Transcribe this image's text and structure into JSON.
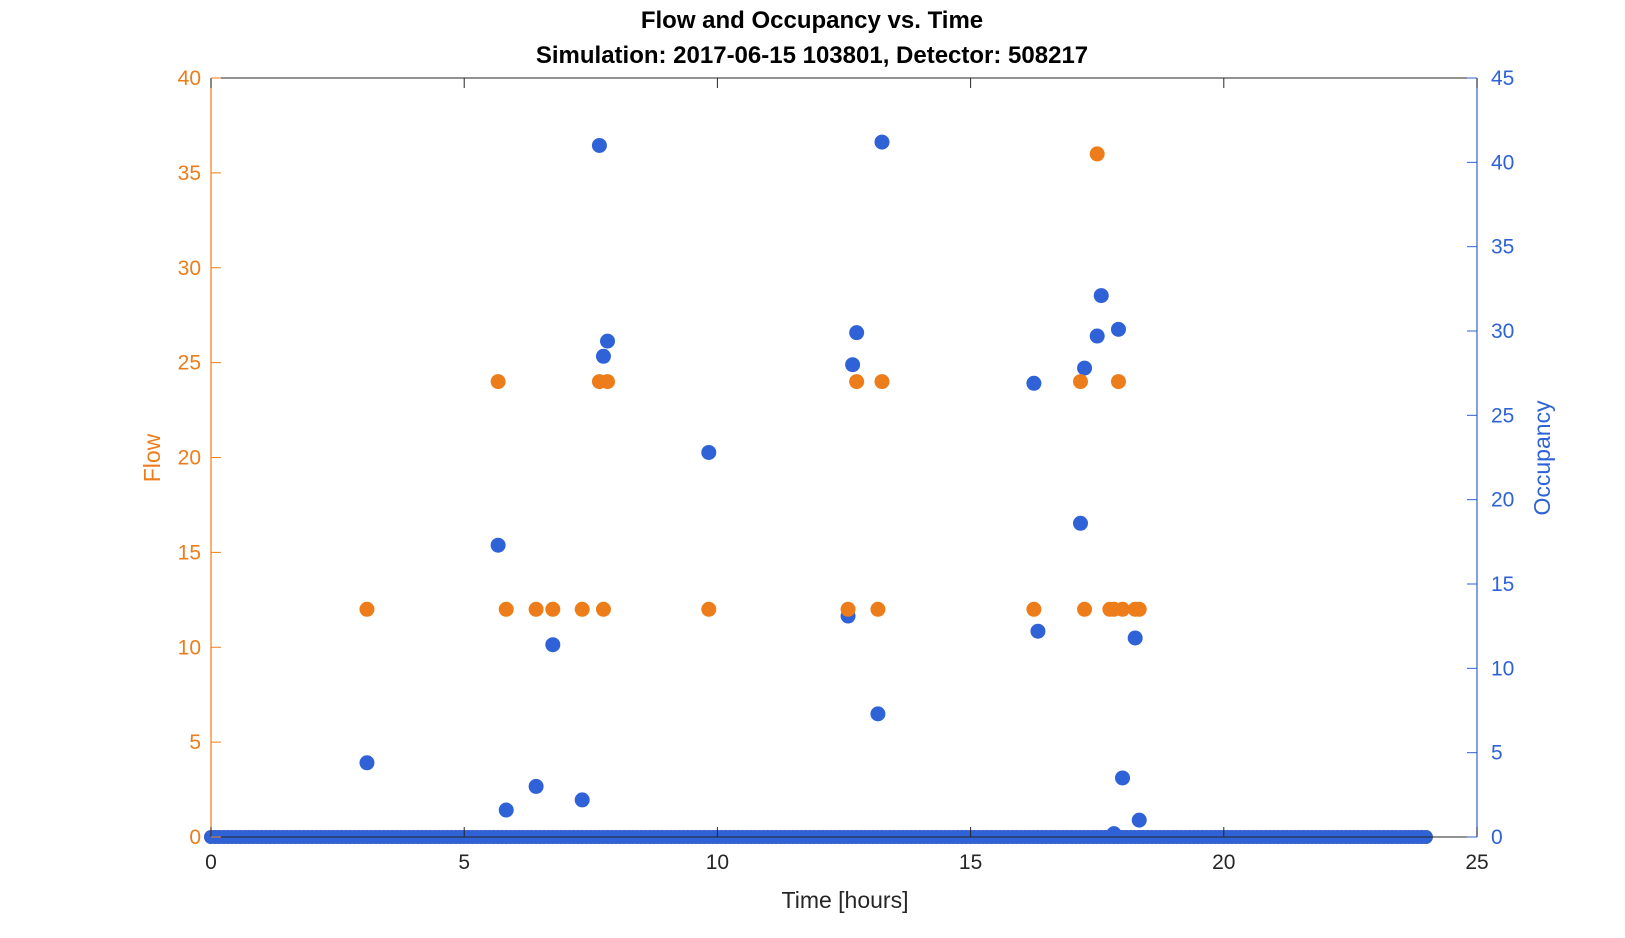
{
  "chart_data": {
    "type": "scatter",
    "title": "Flow and Occupancy vs. Time",
    "subtitle": "Simulation:  2017-06-15 103801,  Detector:  508217",
    "xlabel": "Time [hours]",
    "ylabel_left": "Flow",
    "ylabel_right": "Occupancy",
    "xlim": [
      0,
      25
    ],
    "ylim_left": [
      0,
      40
    ],
    "ylim_right": [
      0,
      45
    ],
    "x_ticks": [
      0,
      5,
      10,
      15,
      20,
      25
    ],
    "y_ticks_left": [
      0,
      5,
      10,
      15,
      20,
      25,
      30,
      35,
      40
    ],
    "y_ticks_right": [
      0,
      5,
      10,
      15,
      20,
      25,
      30,
      35,
      40,
      45
    ],
    "colors": {
      "flow": "#ED7D1A",
      "occupancy": "#2F62D6",
      "axis": "#262626"
    },
    "baseline": {
      "x_start": 0,
      "x_end": 24,
      "step_hours": 0.0833,
      "value": 0
    },
    "series": [
      {
        "name": "Flow",
        "axis": "left",
        "color": "#ED7D1A",
        "points": [
          [
            3.08,
            12
          ],
          [
            5.67,
            24
          ],
          [
            5.83,
            12
          ],
          [
            6.42,
            12
          ],
          [
            6.75,
            12
          ],
          [
            7.33,
            12
          ],
          [
            7.67,
            24
          ],
          [
            7.75,
            12
          ],
          [
            7.83,
            24
          ],
          [
            9.83,
            12
          ],
          [
            12.58,
            12
          ],
          [
            12.75,
            24
          ],
          [
            13.17,
            12
          ],
          [
            13.25,
            24
          ],
          [
            16.25,
            12
          ],
          [
            17.17,
            24
          ],
          [
            17.25,
            12
          ],
          [
            17.5,
            36
          ],
          [
            17.75,
            12
          ],
          [
            17.83,
            12
          ],
          [
            17.92,
            24
          ],
          [
            18.0,
            12
          ],
          [
            18.25,
            12
          ],
          [
            18.33,
            12
          ]
        ]
      },
      {
        "name": "Occupancy",
        "axis": "right",
        "color": "#2F62D6",
        "points": [
          [
            3.08,
            4.4
          ],
          [
            5.67,
            17.3
          ],
          [
            5.83,
            1.6
          ],
          [
            6.42,
            3.0
          ],
          [
            6.75,
            11.4
          ],
          [
            7.33,
            2.2
          ],
          [
            7.67,
            41.0
          ],
          [
            7.75,
            28.5
          ],
          [
            7.83,
            29.4
          ],
          [
            9.83,
            22.8
          ],
          [
            12.58,
            13.1
          ],
          [
            12.67,
            28.0
          ],
          [
            12.75,
            29.9
          ],
          [
            13.17,
            7.3
          ],
          [
            13.25,
            41.2
          ],
          [
            16.25,
            26.9
          ],
          [
            16.33,
            12.2
          ],
          [
            17.17,
            18.6
          ],
          [
            17.25,
            27.8
          ],
          [
            17.5,
            29.7
          ],
          [
            17.58,
            32.1
          ],
          [
            17.83,
            0.2
          ],
          [
            17.92,
            30.1
          ],
          [
            18.0,
            3.5
          ],
          [
            18.25,
            11.8
          ],
          [
            18.33,
            1.0
          ]
        ]
      }
    ]
  }
}
